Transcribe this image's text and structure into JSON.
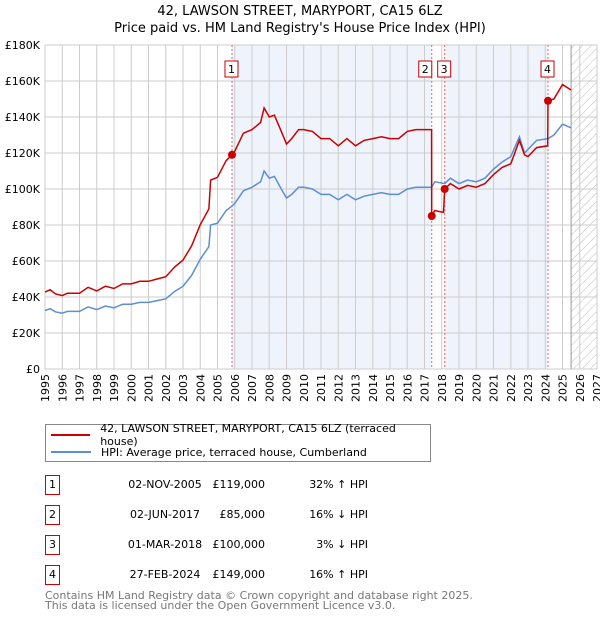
{
  "title": "42, LAWSON STREET, MARYPORT, CA15 6LZ",
  "subtitle": "Price paid vs. HM Land Registry's House Price Index (HPI)",
  "legend": {
    "property": "42, LAWSON STREET, MARYPORT, CA15 6LZ (terraced house)",
    "hpi": "HPI: Average price, terraced house, Cumberland"
  },
  "sales": [
    {
      "num": "1",
      "date": "02-NOV-2005",
      "price": "£119,000",
      "pct": "32% ↑ HPI",
      "x": 2005.84,
      "value": 119
    },
    {
      "num": "2",
      "date": "02-JUN-2017",
      "price": "£85,000",
      "pct": "16% ↓ HPI",
      "x": 2017.42,
      "value": 85
    },
    {
      "num": "3",
      "date": "01-MAR-2018",
      "price": "£100,000",
      "pct": "3% ↓ HPI",
      "x": 2018.17,
      "value": 100
    },
    {
      "num": "4",
      "date": "27-FEB-2024",
      "price": "£149,000",
      "pct": "16% ↑ HPI",
      "x": 2024.16,
      "value": 149
    }
  ],
  "footer": [
    "Contains HM Land Registry data © Crown copyright and database right 2025.",
    "This data is licensed under the Open Government Licence v3.0."
  ],
  "chart_data": {
    "type": "line",
    "title": "42, LAWSON STREET, MARYPORT, CA15 6LZ",
    "xlim": [
      1995,
      2027
    ],
    "ylim": [
      0,
      180
    ],
    "y_ticks": [
      {
        "v": 0,
        "label": "£0"
      },
      {
        "v": 20,
        "label": "£20K"
      },
      {
        "v": 40,
        "label": "£40K"
      },
      {
        "v": 60,
        "label": "£60K"
      },
      {
        "v": 80,
        "label": "£80K"
      },
      {
        "v": 100,
        "label": "£100K"
      },
      {
        "v": 120,
        "label": "£120K"
      },
      {
        "v": 140,
        "label": "£140K"
      },
      {
        "v": 160,
        "label": "£160K"
      },
      {
        "v": 180,
        "label": "£180K"
      }
    ],
    "x_ticks": [
      "1995",
      "1996",
      "1997",
      "1998",
      "1999",
      "2000",
      "2001",
      "2002",
      "2003",
      "2004",
      "2005",
      "2006",
      "2007",
      "2008",
      "2009",
      "2010",
      "2011",
      "2012",
      "2013",
      "2014",
      "2015",
      "2016",
      "2017",
      "2018",
      "2019",
      "2020",
      "2021",
      "2022",
      "2023",
      "2024",
      "2025",
      "2026",
      "2027"
    ],
    "shaded_periods": [
      [
        2005.84,
        2017.42
      ],
      [
        2018.17,
        2024.16
      ]
    ],
    "forecast_from": 2025.5,
    "colors": {
      "property": "#cc0000",
      "hpi": "#5b8fd4",
      "shade": "#eef3fc"
    },
    "series": [
      {
        "name": "property",
        "x": [
          1995,
          1995.3,
          1995.6,
          1996,
          1996.3,
          1997,
          1997.5,
          1998,
          1998.5,
          1999,
          1999.5,
          2000,
          2000.5,
          2001,
          2001.5,
          2002,
          2002.5,
          2003,
          2003.5,
          2004,
          2004.5,
          2004.6,
          2005,
          2005.5,
          2005.84,
          2006,
          2006.5,
          2007,
          2007.5,
          2007.7,
          2008,
          2008.3,
          2008.7,
          2009,
          2009.3,
          2009.7,
          2010,
          2010.5,
          2011,
          2011.5,
          2012,
          2012.5,
          2013,
          2013.5,
          2014,
          2014.5,
          2015,
          2015.5,
          2016,
          2016.5,
          2017,
          2017.41,
          2017.42,
          2017.6,
          2018.1,
          2018.17,
          2018.5,
          2019,
          2019.5,
          2020,
          2020.5,
          2021,
          2021.5,
          2022,
          2022.5,
          2022.8,
          2023,
          2023.5,
          2024.14,
          2024.16,
          2024.5,
          2025,
          2025.5
        ],
        "y": [
          42.7,
          44,
          41.8,
          40.8,
          42.1,
          42.1,
          45.4,
          43.4,
          46,
          44.7,
          47.3,
          47.3,
          48.7,
          48.7,
          50,
          51.3,
          56.5,
          60.5,
          68.4,
          80.2,
          89,
          105,
          106.5,
          115.7,
          119,
          121,
          131,
          133,
          137,
          145,
          140,
          141,
          132,
          125,
          128,
          133,
          133,
          132,
          128,
          128,
          124,
          128,
          124,
          127,
          128,
          129,
          128,
          128,
          132,
          133,
          133,
          133,
          85,
          88,
          87,
          100,
          103,
          100,
          102,
          101,
          103,
          108,
          112,
          114,
          127,
          119,
          118,
          123,
          124,
          149,
          150,
          158,
          155
        ]
      },
      {
        "name": "hpi",
        "x": [
          1995,
          1995.3,
          1995.6,
          1996,
          1996.3,
          1997,
          1997.5,
          1998,
          1998.5,
          1999,
          1999.5,
          2000,
          2000.5,
          2001,
          2001.5,
          2002,
          2002.5,
          2003,
          2003.5,
          2004,
          2004.5,
          2004.6,
          2005,
          2005.5,
          2005.84,
          2006,
          2006.5,
          2007,
          2007.5,
          2007.7,
          2008,
          2008.3,
          2008.7,
          2009,
          2009.3,
          2009.7,
          2010,
          2010.5,
          2011,
          2011.5,
          2012,
          2012.5,
          2013,
          2013.5,
          2014,
          2014.5,
          2015,
          2015.5,
          2016,
          2016.5,
          2017,
          2017.42,
          2017.6,
          2018.17,
          2018.5,
          2019,
          2019.5,
          2020,
          2020.5,
          2021,
          2021.5,
          2022,
          2022.5,
          2022.8,
          2023,
          2023.5,
          2024.16,
          2024.5,
          2025,
          2025.5
        ],
        "y": [
          32.5,
          33.5,
          31.8,
          31,
          32,
          32,
          34.5,
          33,
          35,
          34,
          36,
          36,
          37,
          37,
          38,
          39,
          43,
          46,
          52,
          61,
          68,
          80,
          81,
          88,
          90.5,
          92,
          99,
          101,
          104,
          110,
          106,
          107,
          100,
          95,
          97,
          101,
          101,
          100,
          97,
          97,
          94,
          97,
          94,
          96,
          97,
          98,
          97,
          97,
          100,
          101,
          101,
          101,
          104,
          103,
          106,
          103,
          105,
          104,
          106,
          111,
          115,
          118,
          129,
          120,
          122,
          127,
          128,
          130,
          136,
          134
        ]
      }
    ]
  }
}
